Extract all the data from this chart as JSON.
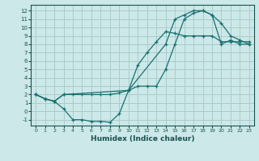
{
  "xlabel": "Humidex (Indice chaleur)",
  "bg_color": "#cce8e8",
  "grid_color": "#aacccc",
  "line_color": "#1a7070",
  "xlim": [
    -0.5,
    23.5
  ],
  "ylim": [
    -1.7,
    12.7
  ],
  "xticks": [
    0,
    1,
    2,
    3,
    4,
    5,
    6,
    7,
    8,
    9,
    10,
    11,
    12,
    13,
    14,
    15,
    16,
    17,
    18,
    19,
    20,
    21,
    22,
    23
  ],
  "yticks": [
    -1,
    0,
    1,
    2,
    3,
    4,
    5,
    6,
    7,
    8,
    9,
    10,
    11,
    12
  ],
  "line1_x": [
    0,
    1,
    2,
    3,
    4,
    5,
    6,
    7,
    8,
    9,
    10,
    11,
    12,
    13,
    14,
    15,
    16,
    17,
    18,
    19,
    20,
    21,
    22,
    23
  ],
  "line1_y": [
    2,
    1.5,
    1.2,
    0.3,
    -1,
    -1,
    -1.2,
    -1.2,
    -1.3,
    -0.3,
    2.5,
    5.5,
    7,
    8.3,
    9.5,
    9.3,
    9,
    9,
    9,
    9,
    8.3,
    8.3,
    8.3,
    8.3
  ],
  "line2_x": [
    0,
    1,
    2,
    3,
    4,
    5,
    6,
    7,
    8,
    9,
    10,
    11,
    12,
    13,
    14,
    15,
    16,
    17,
    18,
    19,
    20,
    21,
    22,
    23
  ],
  "line2_y": [
    2,
    1.5,
    1.2,
    2,
    2,
    2,
    2,
    2,
    2,
    2.2,
    2.5,
    3,
    3,
    3,
    5,
    8,
    11,
    11.7,
    12,
    11.5,
    10.5,
    9,
    8.5,
    8
  ],
  "line3_x": [
    0,
    1,
    2,
    3,
    10,
    14,
    15,
    16,
    17,
    18,
    19,
    20,
    21,
    22,
    23
  ],
  "line3_y": [
    2,
    1.5,
    1.2,
    2,
    2.5,
    8,
    11,
    11.5,
    12,
    12,
    11.5,
    8,
    8.5,
    8,
    8
  ]
}
